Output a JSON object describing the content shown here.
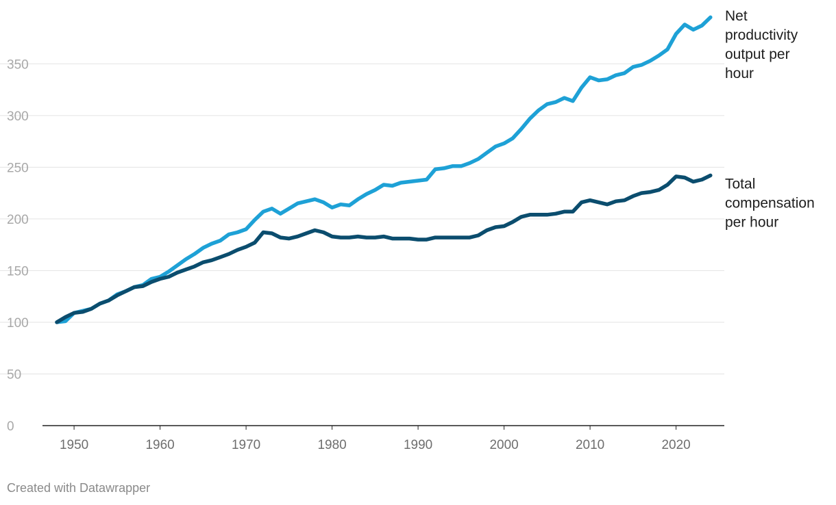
{
  "chart_data": {
    "type": "line",
    "title": "",
    "xlabel": "",
    "ylabel": "",
    "xlim": [
      1948,
      2024
    ],
    "ylim": [
      0,
      400
    ],
    "x_ticks": [
      1950,
      1960,
      1970,
      1980,
      1990,
      2000,
      2010,
      2020
    ],
    "y_ticks": [
      0,
      50,
      100,
      150,
      200,
      250,
      300,
      350
    ],
    "grid": true,
    "legend": "direct labels at right end of lines",
    "x": [
      1948,
      1949,
      1950,
      1951,
      1952,
      1953,
      1954,
      1955,
      1956,
      1957,
      1958,
      1959,
      1960,
      1961,
      1962,
      1963,
      1964,
      1965,
      1966,
      1967,
      1968,
      1969,
      1970,
      1971,
      1972,
      1973,
      1974,
      1975,
      1976,
      1977,
      1978,
      1979,
      1980,
      1981,
      1982,
      1983,
      1984,
      1985,
      1986,
      1987,
      1988,
      1989,
      1990,
      1991,
      1992,
      1993,
      1994,
      1995,
      1996,
      1997,
      1998,
      1999,
      2000,
      2001,
      2002,
      2003,
      2004,
      2005,
      2006,
      2007,
      2008,
      2009,
      2010,
      2011,
      2012,
      2013,
      2014,
      2015,
      2016,
      2017,
      2018,
      2019,
      2020,
      2021,
      2022,
      2023,
      2024
    ],
    "series": [
      {
        "name": "Net productivity output per hour",
        "label_lines": [
          "Net",
          "productivity",
          "output per",
          "hour"
        ],
        "color": "#1ea1d6",
        "values": [
          100,
          101,
          109,
          111,
          113,
          118,
          121,
          127,
          130,
          134,
          136,
          142,
          144,
          149,
          155,
          161,
          166,
          172,
          176,
          179,
          185,
          187,
          190,
          199,
          207,
          210,
          205,
          210,
          215,
          217,
          219,
          216,
          211,
          214,
          213,
          219,
          224,
          228,
          233,
          232,
          235,
          236,
          237,
          238,
          248,
          249,
          251,
          251,
          254,
          258,
          264,
          270,
          273,
          278,
          287,
          297,
          305,
          311,
          313,
          317,
          314,
          327,
          337,
          334,
          335,
          339,
          341,
          347,
          349,
          353,
          358,
          364,
          379,
          388,
          383,
          387,
          395
        ]
      },
      {
        "name": "Total compensation per hour",
        "label_lines": [
          "Total",
          "compensation",
          "per hour"
        ],
        "color": "#0b4d6e",
        "values": [
          100,
          105,
          109,
          110,
          113,
          118,
          121,
          126,
          130,
          134,
          135,
          139,
          142,
          144,
          148,
          151,
          154,
          158,
          160,
          163,
          166,
          170,
          173,
          177,
          187,
          186,
          182,
          181,
          183,
          186,
          189,
          187,
          183,
          182,
          182,
          183,
          182,
          182,
          183,
          181,
          181,
          181,
          180,
          180,
          182,
          182,
          182,
          182,
          182,
          184,
          189,
          192,
          193,
          197,
          202,
          204,
          204,
          204,
          205,
          207,
          207,
          216,
          218,
          216,
          214,
          217,
          218,
          222,
          225,
          226,
          228,
          233,
          241,
          240,
          236,
          238,
          242
        ]
      }
    ]
  },
  "footer": {
    "credit": "Created with Datawrapper"
  }
}
